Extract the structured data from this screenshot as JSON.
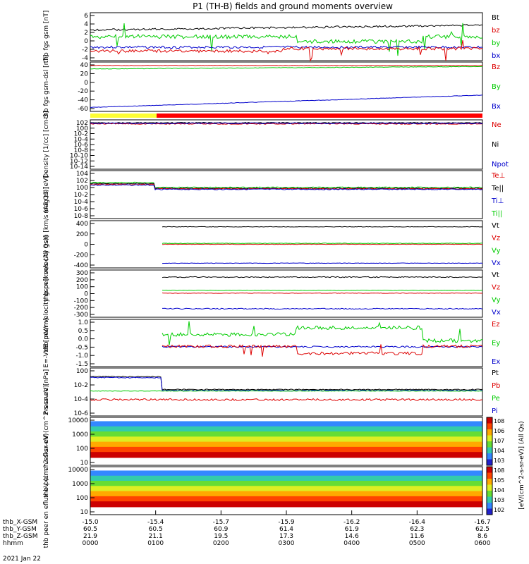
{
  "title": "P1 (TH-B) fields and ground moments overview",
  "orbit_rows": [
    {
      "label": "thb_X-GSM",
      "values": [
        "-15.0",
        "-15.4",
        "-15.7",
        "-15.9",
        "-16.2",
        "-16.4",
        "-16.7"
      ]
    },
    {
      "label": "thb_Y-GSM",
      "values": [
        "60.5",
        "60.5",
        "60.9",
        "61.4",
        "61.9",
        "62.3",
        "62.5"
      ]
    },
    {
      "label": "thb_Z-GSM",
      "values": [
        "21.9",
        "21.1",
        "19.5",
        "17.3",
        "14.6",
        "11.6",
        "8.6"
      ]
    },
    {
      "label": "hhmm",
      "values": [
        "0000",
        "0100",
        "0200",
        "0300",
        "0400",
        "0500",
        "0600"
      ]
    }
  ],
  "date_label": "2021 Jan 22",
  "colorbar": {
    "label": "[eV/(cm^2-s-sr-eV)] (All Qs)",
    "top_ticks": [
      "10^8",
      "10^6",
      "10^7",
      "10^4",
      "10^3"
    ],
    "bottom_ticks": [
      "10^8",
      "10^5",
      "10^4",
      "10^3",
      "10^2"
    ]
  },
  "chart_data": [
    {
      "type": "line",
      "ylabel": "thb fgs gsm [nT]",
      "yticks": [
        "6",
        "4",
        "2",
        "0",
        "-2",
        "-4"
      ],
      "ylim": [
        -4,
        6
      ],
      "series": [
        {
          "name": "Bt",
          "color": "#000000"
        },
        {
          "name": "bz",
          "color": "#dd0000"
        },
        {
          "name": "by",
          "color": "#00cc00"
        },
        {
          "name": "bx",
          "color": "#0000cc"
        }
      ]
    },
    {
      "type": "line",
      "ylabel": "thb fgs gsm-dsl [nT]",
      "yticks": [
        "40",
        "20",
        "0",
        "-20",
        "-40",
        "-60"
      ],
      "ylim": [
        -65,
        45
      ],
      "series": [
        {
          "name": "Bz",
          "color": "#dd0000"
        },
        {
          "name": "By",
          "color": "#00cc00"
        },
        {
          "name": "Bx",
          "color": "#0000cc"
        }
      ]
    },
    {
      "type": "line",
      "ylabel": "Density [1/cc] [cm-3]",
      "yticks": [
        "10^2",
        "10^0",
        "10^-2",
        "10^-4",
        "10^-6",
        "10^-8",
        "10^-10",
        "10^-12",
        "10^-14"
      ],
      "series": [
        {
          "name": "Ne",
          "color": "#dd0000"
        },
        {
          "name": "Ni",
          "color": "#000000"
        },
        {
          "name": "Npot",
          "color": "#0000cc"
        }
      ]
    },
    {
      "type": "line",
      "ylabel": "mag t3 [eV]",
      "yticks": [
        "10^4",
        "10^2",
        "10^0",
        "10^-2",
        "10^-4",
        "10^-6",
        "10^-8"
      ],
      "series": [
        {
          "name": "Te⊥",
          "color": "#dd0000"
        },
        {
          "name": "Te||",
          "color": "#000000"
        },
        {
          "name": "Ti⊥",
          "color": "#0000cc"
        },
        {
          "name": "Ti||",
          "color": "#00cc00"
        }
      ]
    },
    {
      "type": "line",
      "ylabel": "thb peir velocity gsm [km/s (All Qs)]",
      "yticks": [
        "400",
        "200",
        "0",
        "-200",
        "-400"
      ],
      "ylim": [
        -400,
        400
      ],
      "series": [
        {
          "name": "Vt",
          "color": "#000000"
        },
        {
          "name": "Vz",
          "color": "#dd0000"
        },
        {
          "name": "Vy",
          "color": "#00cc00"
        },
        {
          "name": "Vx",
          "color": "#0000cc"
        }
      ]
    },
    {
      "type": "line",
      "ylabel": "thb peer velocity gsm [km/s (All Qs)]",
      "yticks": [
        "300",
        "200",
        "100",
        "0",
        "-100",
        "-200",
        "-300"
      ],
      "ylim": [
        -300,
        300
      ],
      "series": [
        {
          "name": "Vt",
          "color": "#000000"
        },
        {
          "name": "Vz",
          "color": "#dd0000"
        },
        {
          "name": "Vy",
          "color": "#00cc00"
        },
        {
          "name": "Vx",
          "color": "#0000cc"
        }
      ]
    },
    {
      "type": "line",
      "ylabel": "E=-VxB [mV/m]",
      "yticks": [
        "1.0",
        "0.5",
        "0.0",
        "-0.5",
        "-1.0",
        "-1.5"
      ],
      "ylim": [
        -1.5,
        1.0
      ],
      "series": [
        {
          "name": "Ez",
          "color": "#dd0000"
        },
        {
          "name": "Ey",
          "color": "#00cc00"
        },
        {
          "name": "Ex",
          "color": "#0000cc"
        }
      ]
    },
    {
      "type": "line",
      "ylabel": "Pressure [nPa]",
      "yticks": [
        "10^0",
        "10^-2",
        "10^-4",
        "10^-6"
      ],
      "series": [
        {
          "name": "Pt",
          "color": "#000000"
        },
        {
          "name": "Pb",
          "color": "#dd0000"
        },
        {
          "name": "Pe",
          "color": "#00cc00"
        },
        {
          "name": "Pi",
          "color": "#0000cc"
        }
      ]
    },
    {
      "type": "heatmap",
      "ylabel": "thb peir en eflux eV (cm^2-s-sr-eV)",
      "yticks": [
        "10000",
        "1000",
        "100",
        "10"
      ]
    },
    {
      "type": "heatmap",
      "ylabel": "thb peer en eflux eV (cm^2-s-sr-eV)",
      "yticks": [
        "10000",
        "1000",
        "100",
        "10"
      ]
    }
  ]
}
